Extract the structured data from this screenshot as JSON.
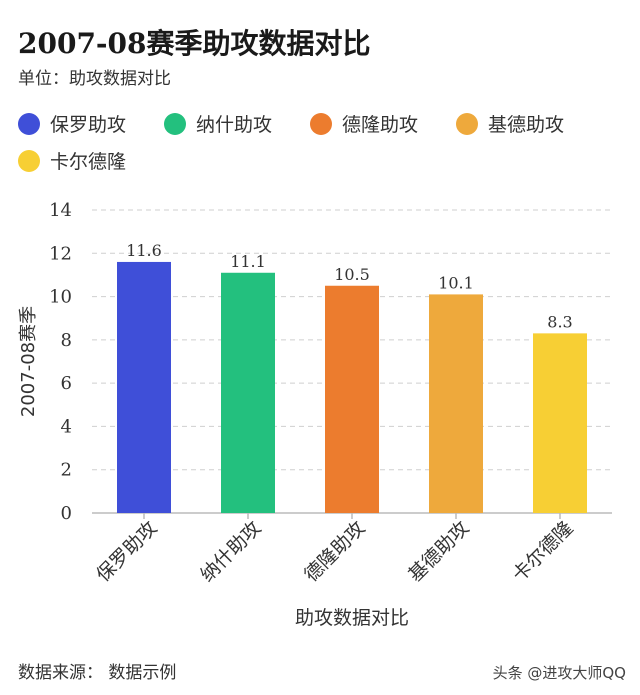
{
  "chart_data": {
    "type": "bar",
    "title": "2007-08赛季助攻数据对比",
    "subtitle": "单位：助攻数据对比",
    "categories": [
      "保罗助攻",
      "纳什助攻",
      "德隆助攻",
      "基德助攻",
      "卡尔德隆"
    ],
    "values": [
      11.6,
      11.1,
      10.5,
      10.1,
      8.3
    ],
    "value_labels": [
      "11.6",
      "11.1",
      "10.5",
      "10.1",
      "8.3"
    ],
    "colors": [
      "#3F4FD8",
      "#23C07E",
      "#EC7C2E",
      "#EEA93C",
      "#F7CF34"
    ],
    "xlabel": "助攻数据对比",
    "ylabel": "2007-08赛季",
    "ylim": [
      0,
      14
    ],
    "yticks": [
      "0",
      "2",
      "4",
      "6",
      "8",
      "10",
      "12",
      "14"
    ],
    "grid": true,
    "legend_position": "top-left"
  },
  "footer": {
    "source": "数据来源： 数据示例",
    "watermark": "头条 @进攻大师QQ"
  }
}
